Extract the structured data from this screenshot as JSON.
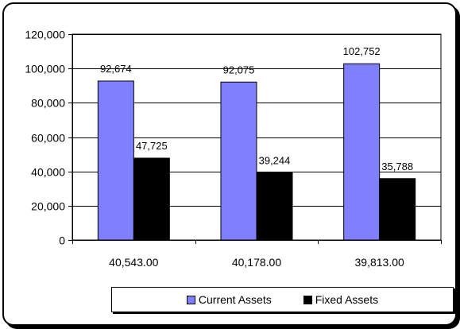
{
  "chart_data": {
    "type": "bar",
    "categories": [
      "40,543.00",
      "40,178.00",
      "39,813.00"
    ],
    "series": [
      {
        "name": "Current Assets",
        "values": [
          92674,
          92075,
          102752
        ],
        "labels": [
          "92,674",
          "92,075",
          "102,752"
        ],
        "color": "#8080ff"
      },
      {
        "name": "Fixed Assets",
        "values": [
          47725,
          39244,
          35788
        ],
        "labels": [
          "47,725",
          "39,244",
          "35,788"
        ],
        "color": "#000000"
      }
    ],
    "yticks": [
      "0",
      "20,000",
      "40,000",
      "60,000",
      "80,000",
      "100,000",
      "120,000"
    ],
    "ylim": [
      0,
      120000
    ],
    "grid": true,
    "legend_position": "bottom-right"
  }
}
